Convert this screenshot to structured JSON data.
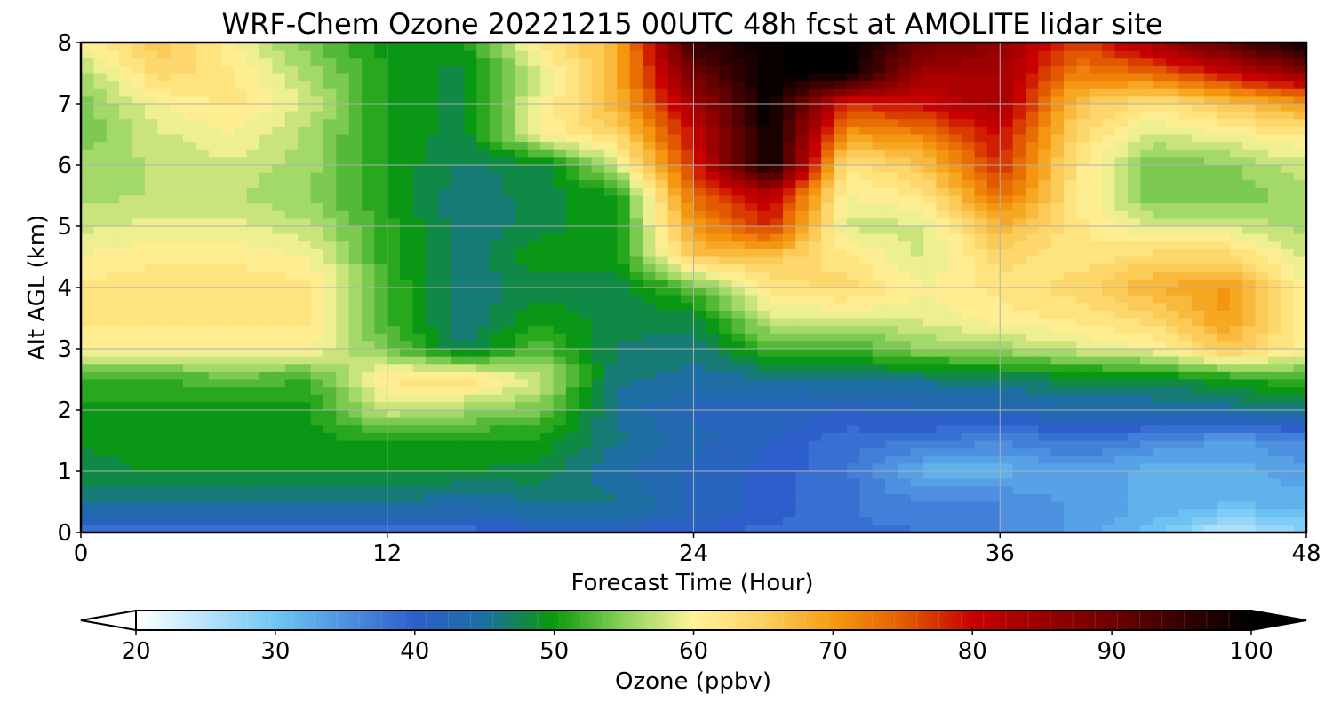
{
  "chart_data": {
    "type": "heatmap",
    "title": "WRF-Chem Ozone  20221215 00UTC 48h fcst at AMOLITE lidar site",
    "xlabel": "Forecast Time (Hour)",
    "ylabel": "Alt AGL (km)",
    "xlim": [
      0,
      48
    ],
    "ylim": [
      0,
      8
    ],
    "x_ticks": [
      "0",
      "12",
      "24",
      "36",
      "48"
    ],
    "y_ticks": [
      "0",
      "1",
      "2",
      "3",
      "4",
      "5",
      "6",
      "7",
      "8"
    ],
    "grid": true,
    "x_hours": [
      0,
      3,
      6,
      9,
      12,
      15,
      18,
      21,
      24,
      27,
      30,
      33,
      36,
      39,
      42,
      45,
      48
    ],
    "z_km": [
      0,
      0.25,
      0.5,
      1,
      1.5,
      2,
      2.5,
      3,
      3.5,
      4,
      4.5,
      5,
      5.5,
      6,
      6.5,
      7,
      7.5,
      8
    ],
    "ozone_ppbv_rows_by_altitude": [
      [
        38,
        38,
        38,
        38,
        38,
        38,
        40,
        40,
        40,
        38,
        38,
        38,
        36,
        34,
        30,
        24,
        28
      ],
      [
        42,
        42,
        42,
        42,
        42,
        42,
        44,
        44,
        42,
        40,
        38,
        36,
        36,
        34,
        32,
        28,
        30
      ],
      [
        46,
        46,
        46,
        46,
        46,
        44,
        46,
        46,
        42,
        40,
        38,
        36,
        36,
        34,
        32,
        32,
        32
      ],
      [
        48,
        49,
        49,
        49,
        49,
        49,
        48,
        44,
        42,
        40,
        38,
        32,
        32,
        34,
        32,
        32,
        34
      ],
      [
        49,
        50,
        50,
        50,
        50,
        50,
        50,
        46,
        43,
        41,
        38,
        38,
        36,
        38,
        36,
        34,
        36
      ],
      [
        50,
        50,
        50,
        50,
        58,
        56,
        54,
        45,
        42,
        42,
        41,
        42,
        42,
        44,
        44,
        45,
        46
      ],
      [
        52,
        52,
        53,
        52,
        62,
        63,
        58,
        46,
        45,
        45,
        46,
        46,
        47,
        48,
        48,
        50,
        52
      ],
      [
        60,
        60,
        60,
        60,
        54,
        47,
        53,
        47,
        46,
        52,
        52,
        55,
        56,
        58,
        60,
        66,
        60
      ],
      [
        62,
        62,
        62,
        62,
        52,
        46,
        50,
        48,
        48,
        58,
        58,
        59,
        61,
        62,
        64,
        70,
        60
      ],
      [
        62,
        63,
        63,
        62,
        52,
        46,
        48,
        48,
        53,
        62,
        64,
        60,
        62,
        64,
        68,
        70,
        60
      ],
      [
        60,
        61,
        61,
        60,
        51,
        46,
        50,
        50,
        66,
        66,
        62,
        58,
        64,
        62,
        64,
        64,
        58
      ],
      [
        58,
        59,
        59,
        57,
        51,
        46,
        48,
        50,
        70,
        78,
        58,
        58,
        68,
        62,
        58,
        58,
        56
      ],
      [
        56,
        57,
        57,
        55,
        50,
        46,
        48,
        50,
        74,
        82,
        60,
        62,
        74,
        62,
        54,
        54,
        56
      ],
      [
        56,
        57,
        58,
        56,
        50,
        47,
        48,
        58,
        78,
        100,
        62,
        66,
        78,
        62,
        54,
        55,
        58
      ],
      [
        54,
        58,
        60,
        56,
        50,
        48,
        60,
        64,
        80,
        100,
        70,
        72,
        80,
        64,
        58,
        60,
        62
      ],
      [
        54,
        60,
        62,
        58,
        50,
        48,
        60,
        68,
        84,
        100,
        78,
        80,
        84,
        66,
        62,
        66,
        70
      ],
      [
        56,
        64,
        62,
        56,
        50,
        48,
        58,
        68,
        90,
        100,
        100,
        84,
        84,
        72,
        74,
        80,
        86
      ],
      [
        60,
        66,
        60,
        54,
        50,
        50,
        62,
        68,
        95,
        100,
        100,
        90,
        86,
        76,
        84,
        92,
        100
      ]
    ],
    "colorbar": {
      "label": "Ozone  (ppbv)",
      "range": [
        20,
        100
      ],
      "ticks": [
        "20",
        "30",
        "40",
        "50",
        "60",
        "70",
        "80",
        "90",
        "100"
      ],
      "extend": "both",
      "orientation": "horizontal",
      "colors": [
        {
          "v": 20,
          "c": "#ffffff"
        },
        {
          "v": 30,
          "c": "#6ec6f5"
        },
        {
          "v": 40,
          "c": "#2d5ecb"
        },
        {
          "v": 45,
          "c": "#1c6fa0"
        },
        {
          "v": 50,
          "c": "#0a9a0a"
        },
        {
          "v": 55,
          "c": "#8cd25a"
        },
        {
          "v": 60,
          "c": "#fff49a"
        },
        {
          "v": 65,
          "c": "#fdd060"
        },
        {
          "v": 70,
          "c": "#f59b10"
        },
        {
          "v": 75,
          "c": "#e35d00"
        },
        {
          "v": 80,
          "c": "#c80000"
        },
        {
          "v": 90,
          "c": "#6e0000"
        },
        {
          "v": 100,
          "c": "#000000"
        }
      ]
    }
  }
}
